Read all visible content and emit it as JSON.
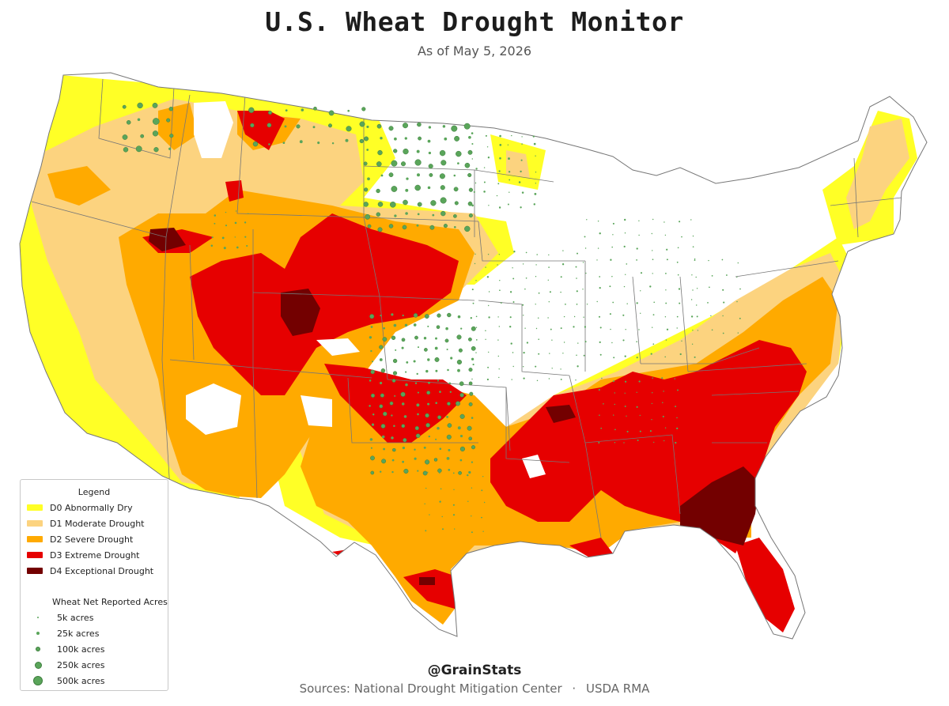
{
  "title": "U.S. Wheat Drought Monitor",
  "subtitle": "As of May 5, 2026",
  "legend": {
    "title": "Legend",
    "drought_categories": [
      {
        "code": "D0",
        "label": "D0 Abnormally Dry",
        "color": "#ffff26"
      },
      {
        "code": "D1",
        "label": "D1 Moderate Drought",
        "color": "#fcd37f"
      },
      {
        "code": "D2",
        "label": "D2 Severe Drought",
        "color": "#ffaa00"
      },
      {
        "code": "D3",
        "label": "D3 Extreme Drought",
        "color": "#e60000"
      },
      {
        "code": "D4",
        "label": "D4 Exceptional Drought",
        "color": "#730000"
      }
    ],
    "size_title": "Wheat Net Reported Acres",
    "sizes": [
      {
        "label": "5k acres",
        "acres": 5000
      },
      {
        "label": "25k acres",
        "acres": 25000
      },
      {
        "label": "100k acres",
        "acres": 100000
      },
      {
        "label": "250k acres",
        "acres": 250000
      },
      {
        "label": "500k acres",
        "acres": 500000
      }
    ]
  },
  "colors": {
    "state_border": "#777777",
    "wheat_dot": "#5aa55a",
    "wheat_dot_edge": "#3f7f3f"
  },
  "footer": {
    "handle": "@GrainStats",
    "source_1": "Sources: National Drought Mitigation Center",
    "separator": "·",
    "source_2": "USDA RMA"
  }
}
